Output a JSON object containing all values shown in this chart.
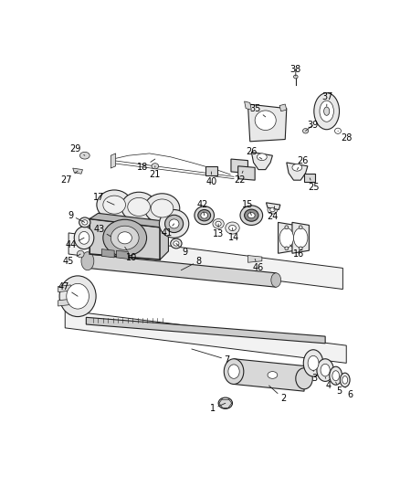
{
  "bg_color": "#ffffff",
  "line_color": "#222222",
  "label_color": "#000000",
  "fill_light": "#e8e8e8",
  "fill_mid": "#d8d8d8",
  "fill_dark": "#c0c0c0"
}
